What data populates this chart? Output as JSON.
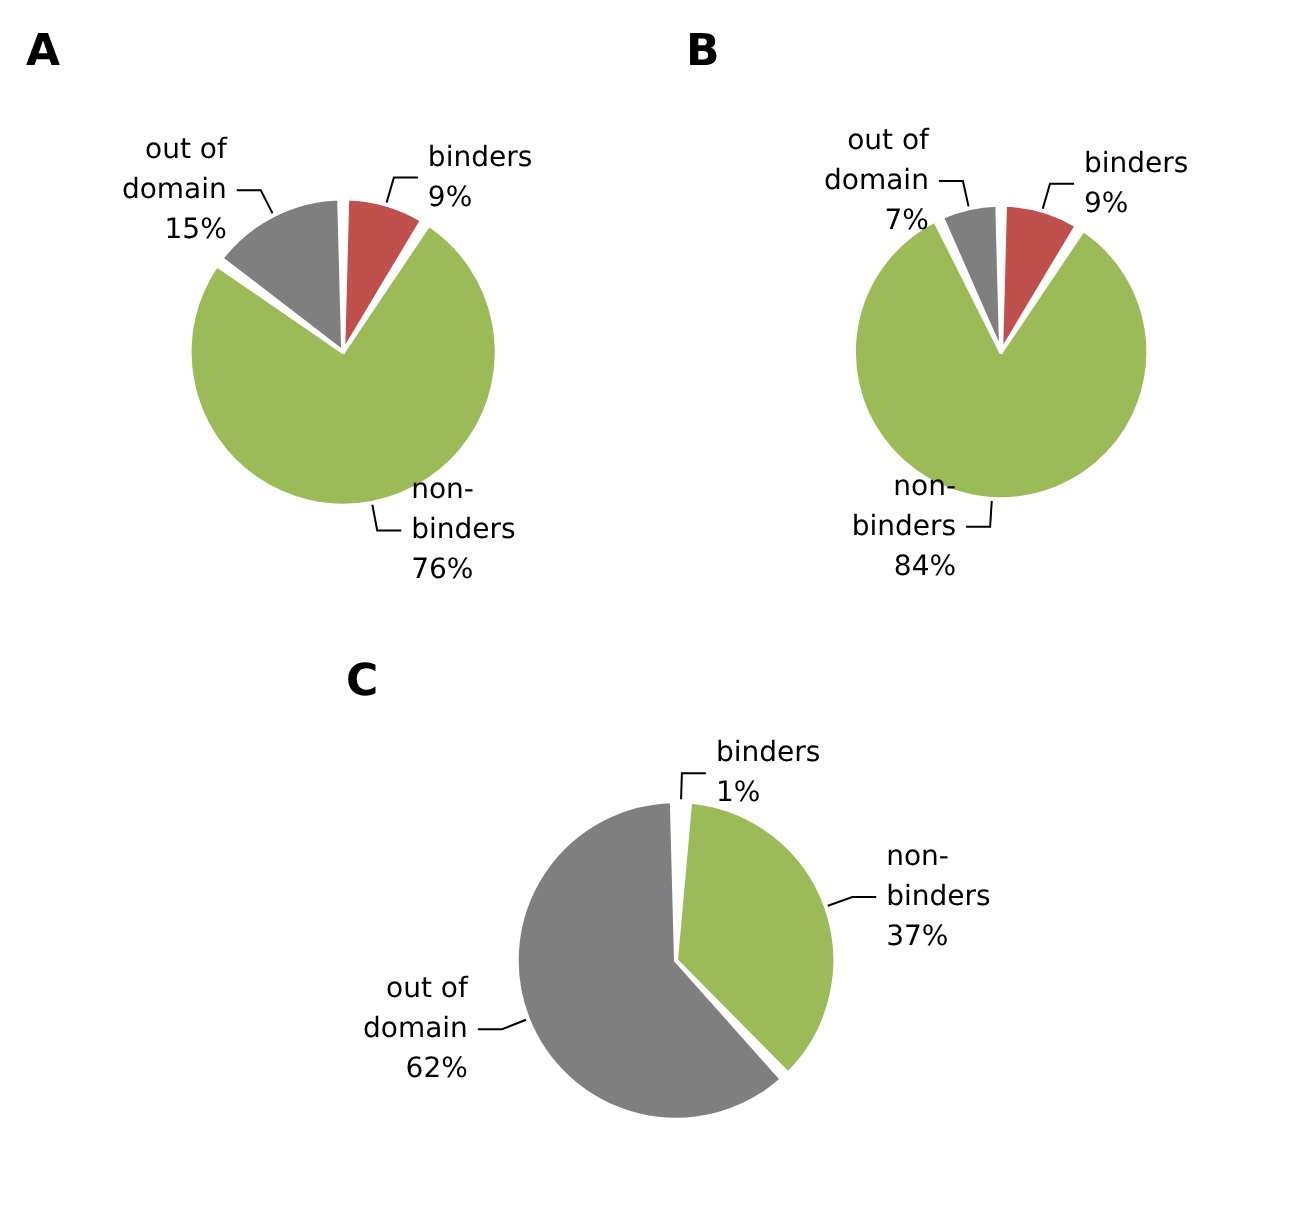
{
  "chart_data": [
    {
      "type": "pie",
      "title": "A",
      "categories": [
        "binders",
        "non-binders",
        "out of domain"
      ],
      "values": [
        9,
        76,
        15
      ],
      "value_labels": [
        "9%",
        "76%",
        "15%"
      ],
      "colors": [
        "#c0504d",
        "#9bbb59",
        "#7f7f7f"
      ]
    },
    {
      "type": "pie",
      "title": "B",
      "categories": [
        "binders",
        "non-binders",
        "out of domain"
      ],
      "values": [
        9,
        84,
        7
      ],
      "value_labels": [
        "9%",
        "84%",
        "7%"
      ],
      "colors": [
        "#c0504d",
        "#9bbb59",
        "#7f7f7f"
      ]
    },
    {
      "type": "pie",
      "title": "C",
      "categories": [
        "binders",
        "non-binders",
        "out of domain"
      ],
      "values": [
        1,
        37,
        62
      ],
      "value_labels": [
        "1%",
        "37%",
        "62%"
      ],
      "colors": [
        "#c0504d",
        "#9bbb59",
        "#7f7f7f"
      ]
    }
  ]
}
